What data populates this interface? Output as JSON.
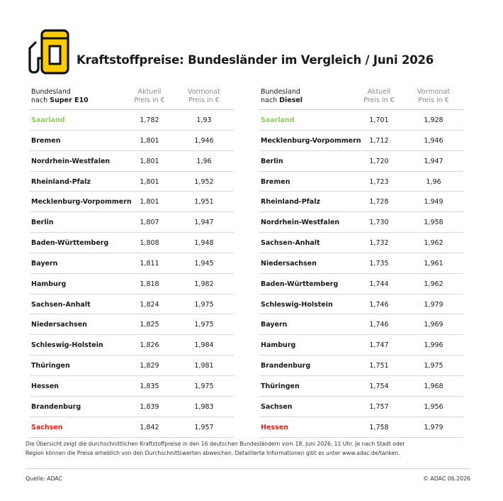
{
  "header": {
    "title": "Kraftstoffpreise: Bundesländer im Vergleich / Juni 2026"
  },
  "colors": {
    "accent_yellow": "#ffcc00",
    "best": "#8fd14f",
    "worst": "#e2231a"
  },
  "chart_data": [
    {
      "type": "table",
      "header": {
        "col1_line1": "Bundesland",
        "col1_line2_prefix": "nach ",
        "col1_line2_bold": "Super E10",
        "col2_line1": "Aktuell",
        "col2_line2": "Preis in €",
        "col3_line1": "Vormonat",
        "col3_line2": "Preis in €"
      },
      "rows": [
        {
          "name": "Saarland",
          "current": "1,782",
          "previous": "1,93",
          "highlight": "best"
        },
        {
          "name": "Bremen",
          "current": "1,801",
          "previous": "1,946"
        },
        {
          "name": "Nordrhein-Westfalen",
          "current": "1,801",
          "previous": "1,96"
        },
        {
          "name": "Rheinland-Pfalz",
          "current": "1,801",
          "previous": "1,952"
        },
        {
          "name": "Mecklenburg-Vorpommern",
          "current": "1,801",
          "previous": "1,951"
        },
        {
          "name": "Berlin",
          "current": "1,807",
          "previous": "1,947"
        },
        {
          "name": "Baden-Württemberg",
          "current": "1,808",
          "previous": "1,948"
        },
        {
          "name": "Bayern",
          "current": "1,811",
          "previous": "1,945"
        },
        {
          "name": "Hamburg",
          "current": "1,818",
          "previous": "1,982"
        },
        {
          "name": "Sachsen-Anhalt",
          "current": "1,824",
          "previous": "1,975"
        },
        {
          "name": "Niedersachsen",
          "current": "1,825",
          "previous": "1,975"
        },
        {
          "name": "Schleswig-Holstein",
          "current": "1,826",
          "previous": "1,984"
        },
        {
          "name": "Thüringen",
          "current": "1,829",
          "previous": "1,981"
        },
        {
          "name": "Hessen",
          "current": "1,835",
          "previous": "1,975"
        },
        {
          "name": "Brandenburg",
          "current": "1,839",
          "previous": "1,983"
        },
        {
          "name": "Sachsen",
          "current": "1,842",
          "previous": "1,957",
          "highlight": "worst"
        }
      ]
    },
    {
      "type": "table",
      "header": {
        "col1_line1": "Bundesland",
        "col1_line2_prefix": "nach ",
        "col1_line2_bold": "Diesel",
        "col2_line1": "Aktuell",
        "col2_line2": "Preis in €",
        "col3_line1": "Vormonat",
        "col3_line2": "Preis in €"
      },
      "rows": [
        {
          "name": "Saarland",
          "current": "1,701",
          "previous": "1,928",
          "highlight": "best"
        },
        {
          "name": "Mecklenburg-Vorpommern",
          "current": "1,712",
          "previous": "1,946"
        },
        {
          "name": "Berlin",
          "current": "1,720",
          "previous": "1,947"
        },
        {
          "name": "Bremen",
          "current": "1,723",
          "previous": "1,96"
        },
        {
          "name": "Rheinland-Pfalz",
          "current": "1,728",
          "previous": "1,949"
        },
        {
          "name": "Nordrhein-Westfalen",
          "current": "1,730",
          "previous": "1,958"
        },
        {
          "name": "Sachsen-Anhalt",
          "current": "1,732",
          "previous": "1,962"
        },
        {
          "name": "Niedersachsen",
          "current": "1,735",
          "previous": "1,961"
        },
        {
          "name": "Baden-Württemberg",
          "current": "1,744",
          "previous": "1,962"
        },
        {
          "name": "Schleswig-Holstein",
          "current": "1,746",
          "previous": "1,979"
        },
        {
          "name": "Bayern",
          "current": "1,746",
          "previous": "1,969"
        },
        {
          "name": "Hamburg",
          "current": "1,747",
          "previous": "1,996"
        },
        {
          "name": "Brandenburg",
          "current": "1,751",
          "previous": "1,975"
        },
        {
          "name": "Thüringen",
          "current": "1,754",
          "previous": "1,968"
        },
        {
          "name": "Sachsen",
          "current": "1,757",
          "previous": "1,956"
        },
        {
          "name": "Hessen",
          "current": "1,758",
          "previous": "1,979",
          "highlight": "worst"
        }
      ]
    }
  ],
  "footer": {
    "note": "Die Übersicht zeigt die durchschnittlichen Kraftstoffpreise in den 16 deutschen Bundesländern vom 18. Juni 2026, 11 Uhr. Je nach Stadt oder Region können die Preise erheblich von den Durchschnittswerten abweichen. Detaillierte Informationen gibt es unter www.adac.de/tanken.",
    "source": "Quelle: ADAC",
    "copyright": "© ADAC 06.2026"
  }
}
